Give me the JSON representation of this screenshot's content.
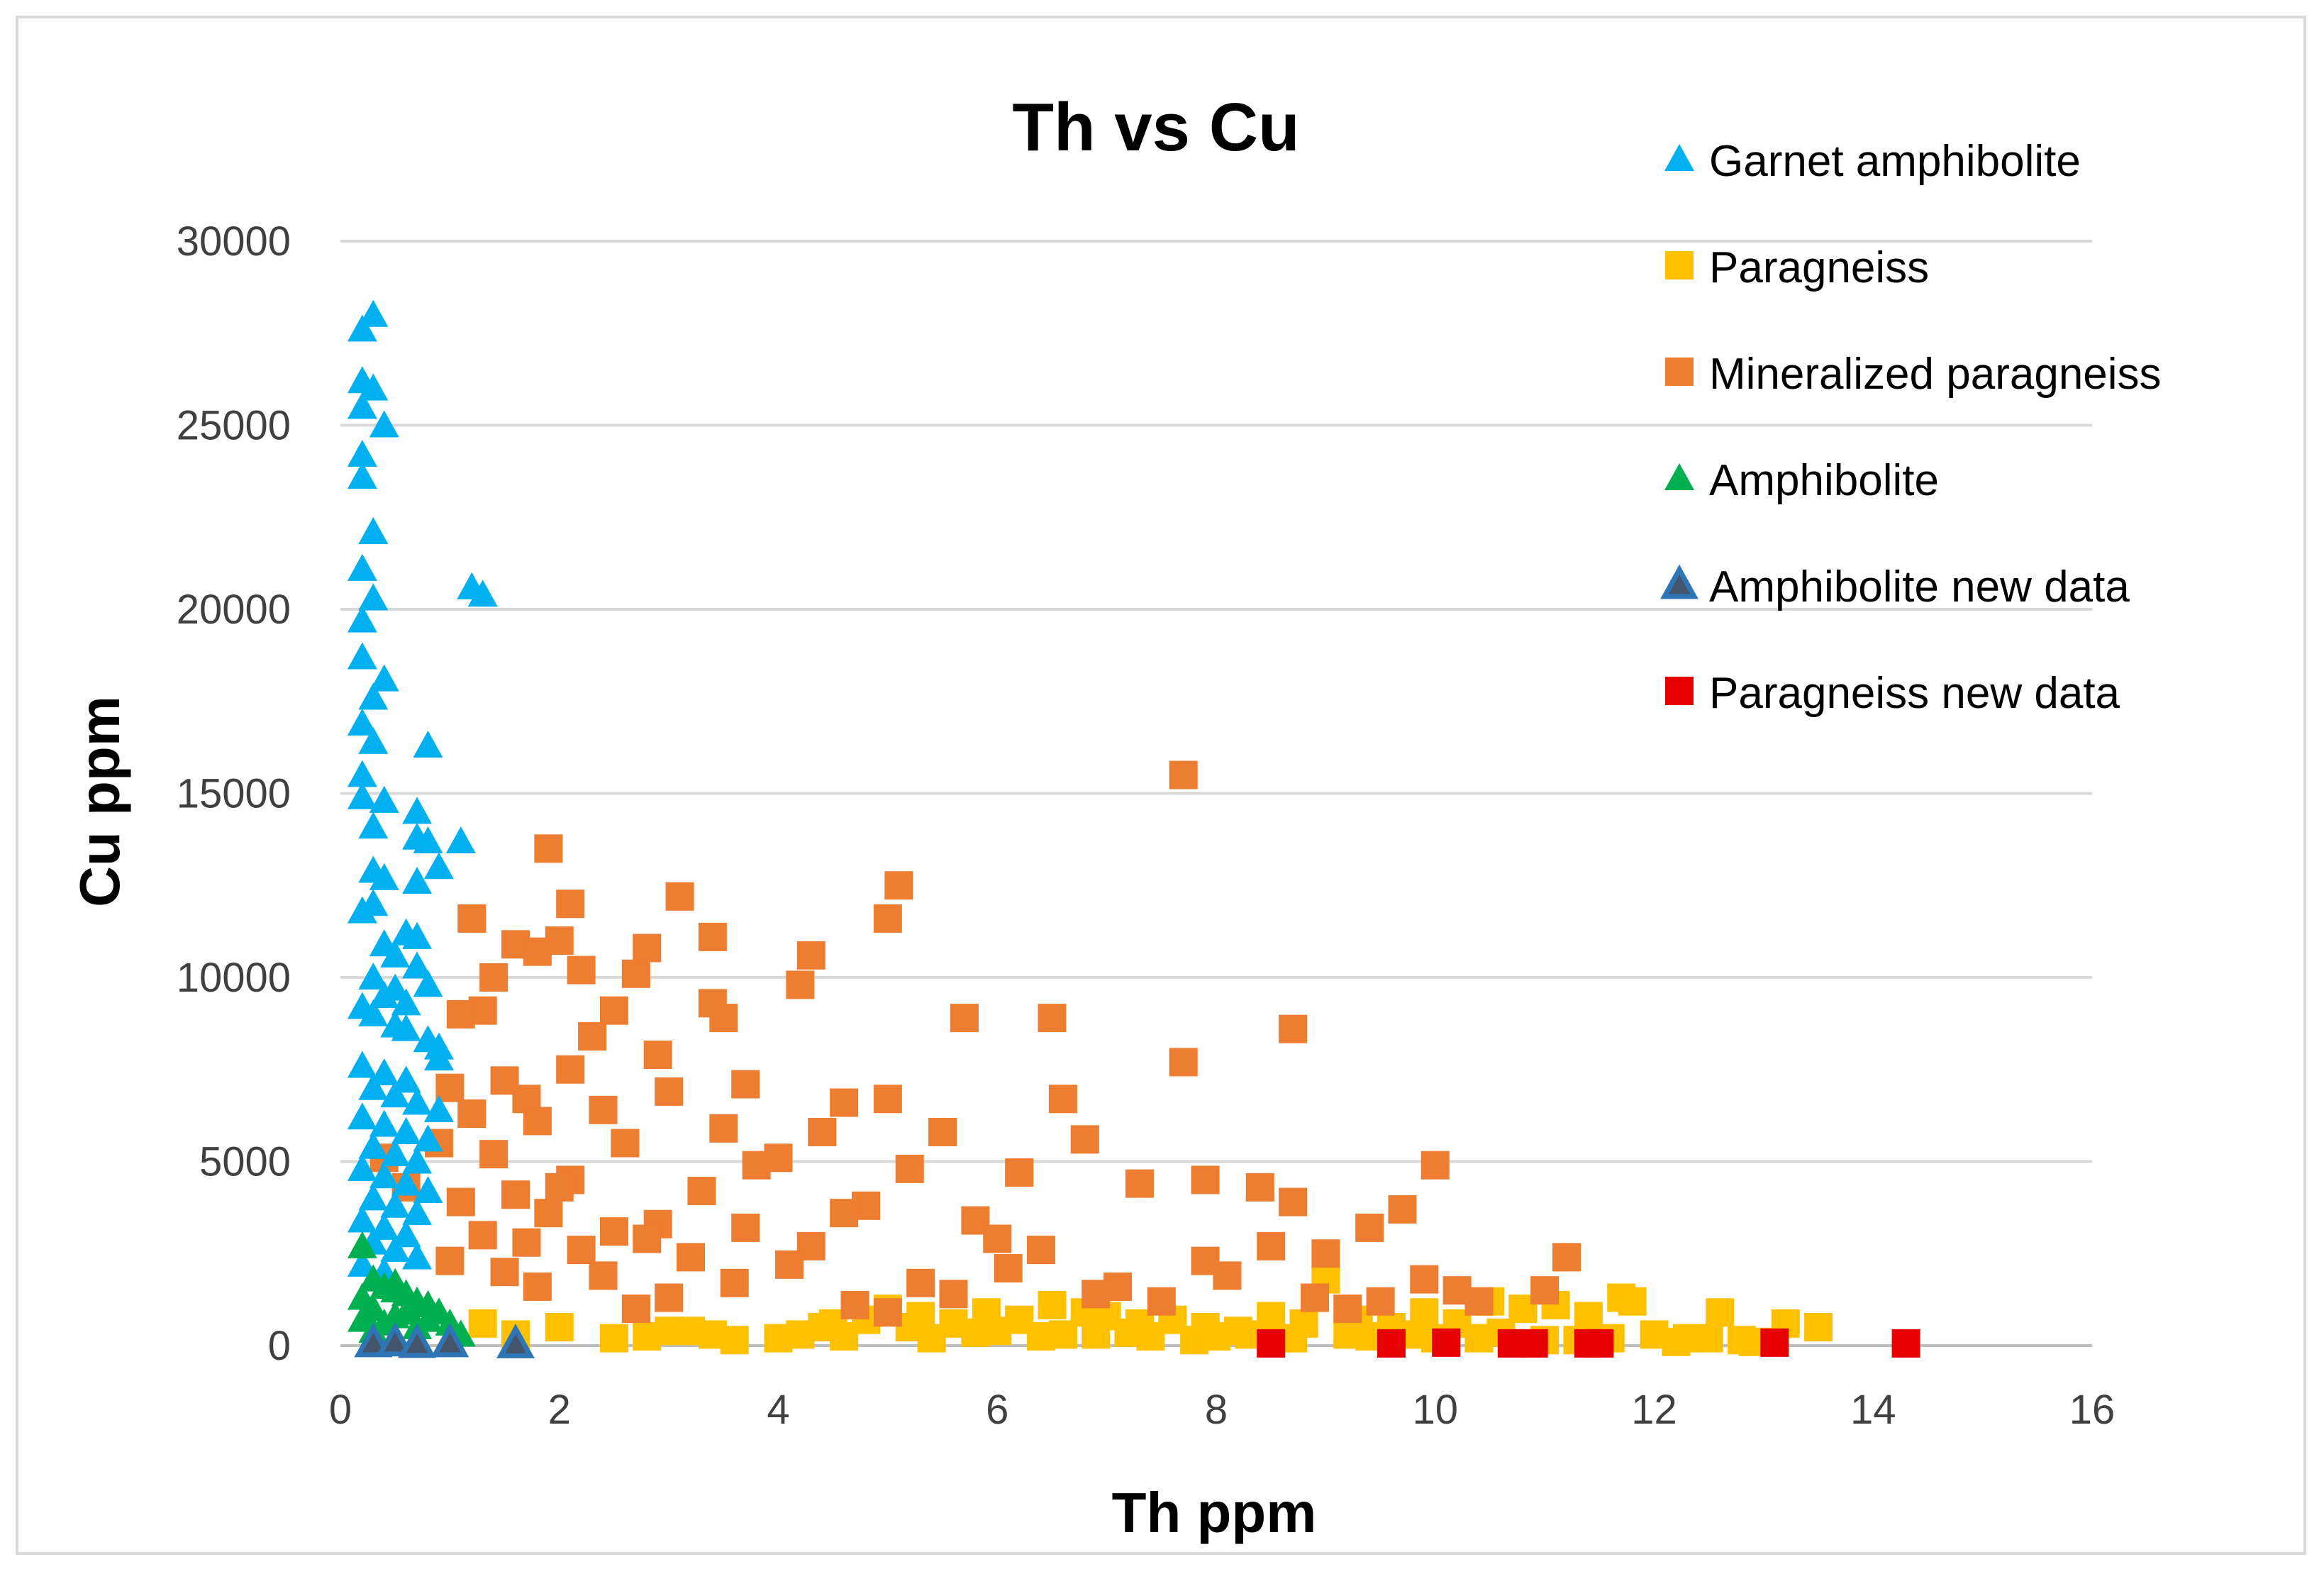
{
  "chart_data": {
    "type": "scatter",
    "title": "Th vs Cu",
    "xlabel": "Th ppm",
    "ylabel": "Cu ppm",
    "xlim": [
      0,
      16
    ],
    "ylim": [
      0,
      30000
    ],
    "xticks": [
      "0",
      "2",
      "4",
      "6",
      "8",
      "10",
      "12",
      "14",
      "16"
    ],
    "yticks": [
      "0",
      "5000",
      "10000",
      "15000",
      "20000",
      "25000",
      "30000"
    ],
    "grid": "horizontal",
    "legend_position": "top-right",
    "series": [
      {
        "name": "Garnet amphibolite",
        "marker": "triangle",
        "color": "#00b0f0",
        "x": [
          0.3,
          0.2,
          0.3,
          0.2,
          0.4,
          0.2,
          0.2,
          0.3,
          0.2,
          0.3,
          1.2,
          1.3,
          0.2,
          0.2,
          0.4,
          0.2,
          0.3,
          0.2,
          0.3,
          0.8,
          0.2,
          0.4,
          0.7,
          0.2,
          0.3,
          0.7,
          0.8,
          0.9,
          0.3,
          1.1,
          0.4,
          0.7,
          0.3,
          0.6,
          0.7,
          0.2,
          0.4,
          0.5,
          0.7,
          0.8,
          0.3,
          0.5,
          0.9,
          0.4,
          0.6,
          0.2,
          0.3,
          0.5,
          0.6,
          0.8,
          0.9,
          0.2,
          0.4,
          0.6,
          0.3,
          0.5,
          0.7,
          0.9,
          0.2,
          0.4,
          0.6,
          0.8,
          0.3,
          0.5,
          0.7,
          0.2,
          0.4,
          0.6,
          0.8,
          0.3,
          0.5,
          0.7,
          0.2,
          0.4,
          0.6,
          0.3,
          0.5,
          0.7,
          0.2,
          0.4,
          0.3,
          0.5
        ],
        "y": [
          28000,
          27600,
          26000,
          26200,
          25000,
          25500,
          24200,
          22100,
          23600,
          20300,
          20600,
          20400,
          21100,
          19700,
          18100,
          18700,
          17600,
          16900,
          16400,
          16300,
          15500,
          14800,
          14500,
          14900,
          14100,
          13800,
          13700,
          13000,
          12900,
          13700,
          12700,
          12600,
          12000,
          11200,
          11100,
          11800,
          10900,
          10600,
          10300,
          9800,
          10000,
          9700,
          8100,
          9500,
          9300,
          9200,
          9000,
          8700,
          8600,
          8300,
          7800,
          7600,
          7400,
          7200,
          7000,
          6800,
          6600,
          6400,
          6200,
          6000,
          5800,
          5600,
          5400,
          5200,
          5000,
          4800,
          4600,
          4400,
          4200,
          4000,
          3800,
          3600,
          3400,
          3200,
          3000,
          2800,
          2600,
          2400,
          2200,
          2000,
          1800,
          1600
        ]
      },
      {
        "name": "Paragneiss",
        "marker": "square",
        "color": "#ffc000",
        "x": [
          1.3,
          1.6,
          2.0,
          2.5,
          3.0,
          3.4,
          4.0,
          4.4,
          4.8,
          5.0,
          5.3,
          5.6,
          5.9,
          6.2,
          6.5,
          6.8,
          7.0,
          7.3,
          7.6,
          7.9,
          8.2,
          8.5,
          8.8,
          9.0,
          9.3,
          9.6,
          9.9,
          10.2,
          10.5,
          10.8,
          11.1,
          11.4,
          11.7,
          12.0,
          12.3,
          12.6,
          12.9,
          13.2,
          13.5,
          2.8,
          3.6,
          4.2,
          4.6,
          5.4,
          5.8,
          6.4,
          6.9,
          7.4,
          7.8,
          8.3,
          8.7,
          9.4,
          9.8,
          10.4,
          11.0,
          11.6,
          12.2,
          12.8,
          3.2,
          4.5,
          5.2,
          6.0,
          6.6,
          7.2,
          8.0,
          8.6,
          9.2,
          10.0,
          10.6,
          11.3,
          11.8,
          12.5,
          13.1
        ],
        "y": [
          600,
          300,
          500,
          200,
          400,
          300,
          200,
          500,
          700,
          1000,
          800,
          600,
          900,
          700,
          1100,
          900,
          800,
          600,
          700,
          500,
          400,
          800,
          600,
          1800,
          700,
          500,
          900,
          600,
          1200,
          1000,
          1100,
          800,
          1300,
          300,
          200,
          900,
          100,
          600,
          500,
          250,
          150,
          300,
          250,
          200,
          350,
          250,
          300,
          250,
          150,
          300,
          200,
          250,
          300,
          200,
          150,
          200,
          100,
          150,
          400,
          600,
          500,
          400,
          300,
          350,
          250,
          200,
          300,
          200,
          350,
          150,
          1200,
          200,
          100
        ]
      },
      {
        "name": "Mineralized paragneiss",
        "marker": "square",
        "color": "#ed7d31",
        "x": [
          7.7,
          1.9,
          5.1,
          3.1,
          2.1,
          1.2,
          5.0,
          3.4,
          2.0,
          1.6,
          4.3,
          2.8,
          1.8,
          1.4,
          2.7,
          4.2,
          2.2,
          1.3,
          5.7,
          6.5,
          8.7,
          3.4,
          3.5,
          2.5,
          1.1,
          2.3,
          7.7,
          3.7,
          1.5,
          2.1,
          2.9,
          1.7,
          1.0,
          6.6,
          4.6,
          3.0,
          2.4,
          1.8,
          1.2,
          5.0,
          5.5,
          6.8,
          3.5,
          2.6,
          0.9,
          10.0,
          7.3,
          4.4,
          3.8,
          1.4,
          0.6,
          0.4,
          8.4,
          7.9,
          6.2,
          5.2,
          4.0,
          2.1,
          1.6,
          9.7,
          8.7,
          4.8,
          3.3,
          2.0,
          1.1,
          9.4,
          5.8,
          4.6,
          2.9,
          1.9,
          1.3,
          8.5,
          6.0,
          3.7,
          2.5,
          1.7,
          9.0,
          6.4,
          4.3,
          2.8,
          11.2,
          9.9,
          7.9,
          6.1,
          3.2,
          2.2,
          1.0,
          10.2,
          8.1,
          5.3,
          4.1,
          1.5,
          10.4,
          8.9,
          7.1,
          5.6,
          3.6,
          2.4,
          11.0,
          9.5,
          6.9,
          4.7,
          3.0,
          1.8,
          9.2,
          7.5,
          5.0,
          2.7
        ],
        "y": [
          15500,
          13500,
          12500,
          12200,
          12000,
          11600,
          11600,
          11100,
          11000,
          10900,
          10600,
          10800,
          10700,
          10000,
          10100,
          9800,
          10200,
          9100,
          8900,
          8900,
          8600,
          9300,
          8900,
          9100,
          9000,
          8400,
          7700,
          7100,
          7200,
          7500,
          7900,
          6700,
          7000,
          6700,
          6600,
          6900,
          6400,
          6100,
          6300,
          6700,
          5800,
          5600,
          5900,
          5500,
          5500,
          4900,
          4400,
          5800,
          4900,
          5200,
          4300,
          5100,
          4300,
          4500,
          4700,
          4800,
          5100,
          4500,
          4100,
          3700,
          3900,
          3800,
          4200,
          4300,
          3900,
          3200,
          3400,
          3600,
          3300,
          3600,
          3000,
          2700,
          2900,
          3200,
          3100,
          2800,
          2500,
          2600,
          2700,
          2900,
          2400,
          1800,
          2300,
          2100,
          2400,
          2600,
          2300,
          1500,
          1900,
          1700,
          2200,
          2000,
          1200,
          1300,
          1600,
          1400,
          1700,
          1900,
          1500,
          1200,
          1400,
          1100,
          1300,
          1600,
          1000,
          1200,
          900,
          1000
        ]
      },
      {
        "name": "Amphibolite",
        "marker": "triangle",
        "color": "#00b050",
        "x": [
          0.2,
          0.3,
          0.4,
          0.2,
          0.5,
          0.6,
          0.7,
          0.8,
          0.9,
          0.3,
          0.5,
          0.2,
          0.4,
          0.6,
          0.8,
          1.0,
          1.1,
          0.3,
          0.7,
          0.5
        ],
        "y": [
          2700,
          1800,
          1600,
          1300,
          1500,
          1400,
          1200,
          1100,
          900,
          1000,
          800,
          700,
          600,
          900,
          700,
          600,
          300,
          400,
          500,
          1700
        ]
      },
      {
        "name": "Amphibolite new data",
        "marker": "triangle-outline",
        "color": "#2e75b6",
        "x": [
          0.3,
          0.5,
          0.7,
          1.0,
          1.6
        ],
        "y": [
          80,
          100,
          60,
          80,
          50
        ]
      },
      {
        "name": "Paragneiss new data",
        "marker": "square",
        "color": "#e60000",
        "x": [
          8.5,
          9.6,
          10.1,
          10.7,
          10.9,
          11.4,
          11.5,
          13.1,
          14.3
        ],
        "y": [
          60,
          60,
          80,
          60,
          60,
          60,
          60,
          80,
          60
        ]
      }
    ]
  }
}
